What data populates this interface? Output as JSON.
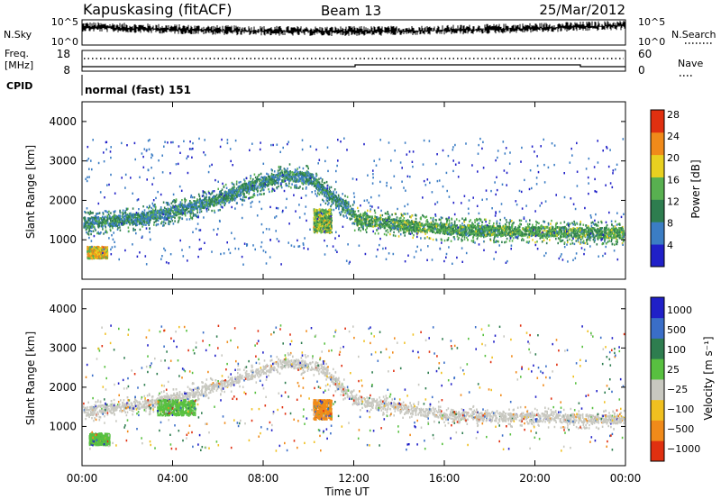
{
  "header": {
    "station": "Kapuskasing (fitACF)",
    "beam": "Beam 13",
    "date": "25/Mar/2012"
  },
  "strips": {
    "nsky": {
      "label": "N.Sky",
      "ticks": [
        "10^5",
        "10^0"
      ]
    },
    "nsearch": {
      "label": "N.Search",
      "ticks": [
        "10^5",
        "10^0"
      ]
    },
    "freq": {
      "label_line1": "Freq.",
      "label_line2": "[MHz]",
      "ticks": [
        "18",
        "8"
      ]
    },
    "nave": {
      "label": "Nave",
      "ticks": [
        "60",
        "0"
      ]
    },
    "cpid": {
      "label": "CPID",
      "mode": "normal (fast) 151"
    }
  },
  "colors": {
    "power": [
      "#2020c8",
      "#3b7dc4",
      "#2e7d4f",
      "#58b050",
      "#e8d020",
      "#f08a1a",
      "#e03010"
    ],
    "velocity": [
      "#2020c8",
      "#3a6ec8",
      "#2e7d4f",
      "#58c040",
      "#c8c8c0",
      "#f0c020",
      "#f08a1a",
      "#e03010"
    ],
    "ground_scatter": "#c8c8c0"
  },
  "chart_data": [
    {
      "type": "heatmap",
      "panel": "power",
      "xlabel": "Time UT",
      "ylabel": "Slant Range [km]",
      "xlim": [
        0,
        24
      ],
      "ylim": [
        0,
        4500
      ],
      "y_ticks": [
        "1000",
        "2000",
        "3000",
        "4000"
      ],
      "colorbar": {
        "label": "Power [dB]",
        "ticks": [
          "4",
          "8",
          "12",
          "16",
          "20",
          "24",
          "28"
        ],
        "range": [
          0,
          30
        ]
      },
      "features": [
        {
          "name": "morning band",
          "t": [
            0.0,
            1.5,
            3.0,
            4.5,
            6.0,
            7.5,
            9.0,
            10.0,
            11.0,
            12.0
          ],
          "range_km": [
            1450,
            1500,
            1600,
            1800,
            2050,
            2400,
            2650,
            2600,
            2100,
            1700
          ],
          "power_db": 10
        },
        {
          "name": "afternoon band",
          "t": [
            12.0,
            14.0,
            16.0,
            18.0,
            20.0,
            22.0,
            24.0
          ],
          "range_km": [
            1550,
            1400,
            1300,
            1250,
            1250,
            1200,
            1200
          ],
          "power_db": 13
        },
        {
          "name": "patch 00:30-01:15",
          "t_range": [
            0.2,
            1.1
          ],
          "range_km": [
            550,
            850
          ],
          "power_db": 20
        },
        {
          "name": "patch 10:30-11:00",
          "t_range": [
            10.2,
            11.0
          ],
          "range_km": [
            1200,
            1800
          ],
          "power_db": 16
        }
      ]
    },
    {
      "type": "heatmap",
      "panel": "velocity",
      "xlabel": "Time UT",
      "ylabel": "Slant Range [km]",
      "xlim": [
        0,
        24
      ],
      "ylim": [
        0,
        4500
      ],
      "x_ticks": [
        "00:00",
        "04:00",
        "08:00",
        "12:00",
        "16:00",
        "20:00",
        "00:00"
      ],
      "y_ticks": [
        "1000",
        "2000",
        "3000",
        "4000"
      ],
      "colorbar": {
        "label": "Velocity [m s⁻¹]",
        "ticks": [
          "1000",
          "500",
          "100",
          "25",
          "−25",
          "−100",
          "−500",
          "−1000"
        ]
      },
      "features": [
        {
          "name": "ground scatter band",
          "t": [
            0.0,
            3.0,
            6.0,
            9.0,
            10.5,
            12.0,
            16.0,
            20.0,
            24.0
          ],
          "range_km": [
            1400,
            1600,
            2050,
            2650,
            2550,
            1700,
            1300,
            1250,
            1200
          ],
          "velocity_class": "gs"
        },
        {
          "name": "green patch early",
          "t_range": [
            0.3,
            1.2
          ],
          "range_km": [
            550,
            850
          ],
          "velocity": 150
        },
        {
          "name": "green patch 04:00",
          "t_range": [
            3.3,
            5.0
          ],
          "range_km": [
            1300,
            1700
          ],
          "velocity": 150
        },
        {
          "name": "orange patch 10:30",
          "t_range": [
            10.2,
            11.0
          ],
          "range_km": [
            1200,
            1700
          ],
          "velocity": -150
        }
      ]
    }
  ]
}
